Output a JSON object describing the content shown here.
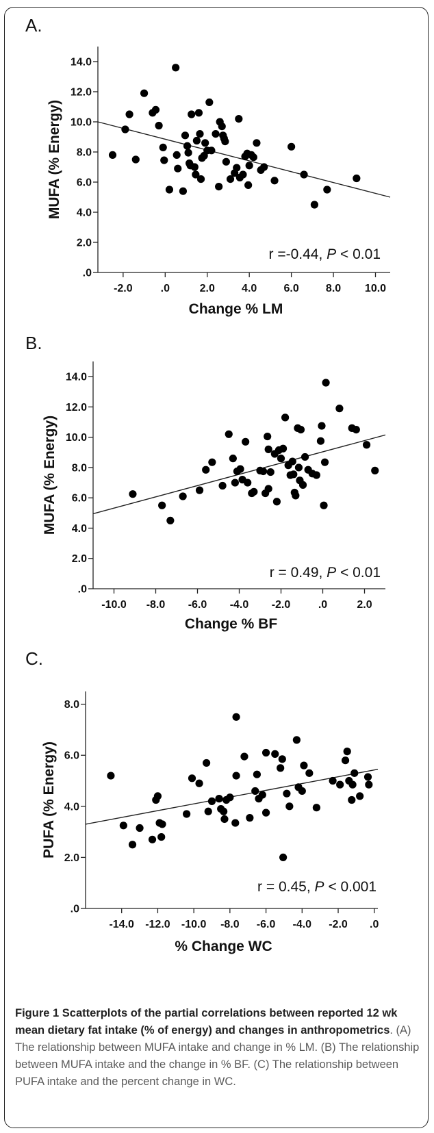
{
  "panels": [
    {
      "letter": "A.",
      "stat_prefix": "r =-0.44, ",
      "stat_p": "P",
      "stat_suffix": " < 0.01"
    },
    {
      "letter": "B.",
      "stat_prefix": "r = 0.49, ",
      "stat_p": "P",
      "stat_suffix": " < 0.01"
    },
    {
      "letter": "C.",
      "stat_prefix": "r = 0.45, ",
      "stat_p": "P",
      "stat_suffix": " < 0.001"
    }
  ],
  "caption": {
    "bold": "Figure 1 Scatterplots of the partial correlations between reported 12 wk mean dietary fat intake (% of energy) and changes in anthropometrics",
    "rest": ". (A) The relationship between MUFA intake and change in % LM. (B) The relationship between MUFA intake and the change in % BF. (C) The relationship between PUFA intake and the percent change in WC."
  },
  "colors": {
    "points": "#000000",
    "line": "#222222",
    "caption": "#5a5a5a"
  },
  "chart_data": [
    {
      "type": "scatter",
      "xlabel": "Change % LM",
      "ylabel": "MUFA (% Energy)",
      "xlim": [
        -3.2,
        10.7
      ],
      "ylim": [
        0,
        15
      ],
      "xticks": [
        -2,
        0,
        2,
        4,
        6,
        8,
        10
      ],
      "xtick_labels": [
        "-2.0",
        ".0",
        "2.0",
        "4.0",
        "6.0",
        "8.0",
        "10.0"
      ],
      "yticks": [
        0,
        2,
        4,
        6,
        8,
        10,
        12,
        14
      ],
      "ytick_labels": [
        ".0",
        "2.0",
        "4.0",
        "6.0",
        "8.0",
        "10.0",
        "12.0",
        "14.0"
      ],
      "fit_line": {
        "x": [
          -3.2,
          10.7
        ],
        "y": [
          10.0,
          5.0
        ]
      },
      "points": [
        [
          -2.5,
          7.8
        ],
        [
          -1.9,
          9.5
        ],
        [
          -1.7,
          10.5
        ],
        [
          -1.4,
          7.5
        ],
        [
          -1.0,
          11.9
        ],
        [
          -0.6,
          10.6
        ],
        [
          -0.45,
          10.8
        ],
        [
          -0.3,
          9.75
        ],
        [
          -0.1,
          8.3
        ],
        [
          -0.05,
          7.45
        ],
        [
          0.2,
          5.5
        ],
        [
          0.5,
          13.6
        ],
        [
          0.55,
          7.8
        ],
        [
          0.6,
          6.9
        ],
        [
          0.85,
          5.4
        ],
        [
          0.95,
          9.1
        ],
        [
          1.05,
          8.4
        ],
        [
          1.1,
          7.95
        ],
        [
          1.15,
          7.25
        ],
        [
          1.2,
          7.1
        ],
        [
          1.25,
          10.5
        ],
        [
          1.4,
          7.0
        ],
        [
          1.45,
          6.5
        ],
        [
          1.5,
          8.75
        ],
        [
          1.6,
          10.6
        ],
        [
          1.65,
          9.2
        ],
        [
          1.7,
          6.2
        ],
        [
          1.75,
          7.6
        ],
        [
          1.85,
          7.75
        ],
        [
          1.9,
          8.6
        ],
        [
          2.0,
          8.1
        ],
        [
          2.1,
          11.3
        ],
        [
          2.2,
          8.1
        ],
        [
          2.4,
          9.2
        ],
        [
          2.55,
          5.7
        ],
        [
          2.6,
          10.0
        ],
        [
          2.7,
          9.7
        ],
        [
          2.75,
          9.1
        ],
        [
          2.8,
          8.9
        ],
        [
          2.85,
          8.7
        ],
        [
          2.9,
          7.35
        ],
        [
          3.1,
          6.2
        ],
        [
          3.3,
          6.6
        ],
        [
          3.4,
          6.95
        ],
        [
          3.5,
          10.2
        ],
        [
          3.55,
          6.3
        ],
        [
          3.7,
          6.5
        ],
        [
          3.8,
          7.7
        ],
        [
          3.9,
          7.9
        ],
        [
          3.95,
          5.8
        ],
        [
          4.0,
          7.1
        ],
        [
          4.1,
          7.8
        ],
        [
          4.2,
          7.65
        ],
        [
          4.35,
          8.6
        ],
        [
          4.55,
          6.8
        ],
        [
          4.7,
          7.0
        ],
        [
          5.2,
          6.1
        ],
        [
          6.0,
          8.35
        ],
        [
          6.6,
          6.5
        ],
        [
          7.1,
          4.5
        ],
        [
          7.7,
          5.5
        ],
        [
          9.1,
          6.25
        ]
      ]
    },
    {
      "type": "scatter",
      "xlabel": "Change % BF",
      "ylabel": "MUFA (% Energy)",
      "xlim": [
        -11,
        3.0
      ],
      "ylim": [
        0,
        15
      ],
      "xticks": [
        -10,
        -8,
        -6,
        -4,
        -2,
        0,
        2
      ],
      "xtick_labels": [
        "-10.0",
        "-8.0",
        "-6.0",
        "-4.0",
        "-2.0",
        ".0",
        "2.0"
      ],
      "yticks": [
        0,
        2,
        4,
        6,
        8,
        10,
        12,
        14
      ],
      "ytick_labels": [
        ".0",
        "2.0",
        "4.0",
        "6.0",
        "8.0",
        "10.0",
        "12.0",
        "14.0"
      ],
      "fit_line": {
        "x": [
          -11,
          3.0
        ],
        "y": [
          4.95,
          10.15
        ]
      },
      "points": [
        [
          -9.1,
          6.25
        ],
        [
          -7.7,
          5.5
        ],
        [
          -7.3,
          4.5
        ],
        [
          -6.7,
          6.1
        ],
        [
          -5.9,
          6.5
        ],
        [
          -5.6,
          7.85
        ],
        [
          -5.3,
          8.35
        ],
        [
          -4.8,
          6.8
        ],
        [
          -4.5,
          10.2
        ],
        [
          -4.3,
          8.6
        ],
        [
          -4.2,
          7.0
        ],
        [
          -4.1,
          7.75
        ],
        [
          -3.95,
          7.9
        ],
        [
          -3.85,
          7.2
        ],
        [
          -3.7,
          9.7
        ],
        [
          -3.6,
          7.0
        ],
        [
          -3.4,
          6.3
        ],
        [
          -3.3,
          6.4
        ],
        [
          -3.0,
          7.8
        ],
        [
          -2.85,
          7.75
        ],
        [
          -2.75,
          6.3
        ],
        [
          -2.6,
          6.6
        ],
        [
          -2.65,
          10.05
        ],
        [
          -2.5,
          7.7
        ],
        [
          -2.6,
          9.2
        ],
        [
          -2.3,
          8.9
        ],
        [
          -2.2,
          5.75
        ],
        [
          -2.1,
          9.15
        ],
        [
          -2.0,
          8.6
        ],
        [
          -1.9,
          9.25
        ],
        [
          -1.8,
          11.3
        ],
        [
          -1.65,
          8.15
        ],
        [
          -1.55,
          7.5
        ],
        [
          -1.45,
          8.4
        ],
        [
          -1.4,
          7.55
        ],
        [
          -1.35,
          6.35
        ],
        [
          -1.3,
          6.15
        ],
        [
          -1.2,
          10.6
        ],
        [
          -1.15,
          8.0
        ],
        [
          -1.1,
          7.15
        ],
        [
          -1.05,
          10.5
        ],
        [
          -0.95,
          6.85
        ],
        [
          -0.85,
          8.7
        ],
        [
          -0.7,
          7.85
        ],
        [
          -0.5,
          7.6
        ],
        [
          -0.3,
          7.5
        ],
        [
          -0.1,
          9.75
        ],
        [
          -0.05,
          10.75
        ],
        [
          0.05,
          5.5
        ],
        [
          0.1,
          8.35
        ],
        [
          0.15,
          13.6
        ],
        [
          0.8,
          11.9
        ],
        [
          1.4,
          10.6
        ],
        [
          1.6,
          10.5
        ],
        [
          2.1,
          9.5
        ],
        [
          2.5,
          7.8
        ]
      ]
    },
    {
      "type": "scatter",
      "xlabel": "% Change WC",
      "ylabel": "PUFA (% Energy)",
      "xlim": [
        -16,
        0.2
      ],
      "ylim": [
        0,
        8.5
      ],
      "xticks": [
        -14,
        -12,
        -10,
        -8,
        -6,
        -4,
        -2,
        0
      ],
      "xtick_labels": [
        "-14.0",
        "-12.0",
        "-10.0",
        "-8.0",
        "-6.0",
        "-4.0",
        "-2.0",
        ".0"
      ],
      "yticks": [
        0,
        2,
        4,
        6,
        8
      ],
      "ytick_labels": [
        ".0",
        "2.0",
        "4.0",
        "6.0",
        "8.0"
      ],
      "fit_line": {
        "x": [
          -16,
          0.2
        ],
        "y": [
          3.3,
          5.45
        ]
      },
      "points": [
        [
          -14.6,
          5.2
        ],
        [
          -13.9,
          3.25
        ],
        [
          -13.4,
          2.5
        ],
        [
          -13.0,
          3.15
        ],
        [
          -12.3,
          2.7
        ],
        [
          -12.1,
          4.25
        ],
        [
          -12.0,
          4.4
        ],
        [
          -11.9,
          3.35
        ],
        [
          -11.8,
          2.8
        ],
        [
          -11.75,
          3.3
        ],
        [
          -10.4,
          3.7
        ],
        [
          -10.1,
          5.1
        ],
        [
          -9.7,
          4.9
        ],
        [
          -9.3,
          5.7
        ],
        [
          -9.2,
          3.8
        ],
        [
          -9.0,
          4.2
        ],
        [
          -8.6,
          4.3
        ],
        [
          -8.5,
          3.9
        ],
        [
          -8.35,
          3.8
        ],
        [
          -8.3,
          3.5
        ],
        [
          -8.2,
          4.25
        ],
        [
          -8.0,
          4.35
        ],
        [
          -7.7,
          3.35
        ],
        [
          -7.65,
          7.5
        ],
        [
          -7.65,
          5.2
        ],
        [
          -7.2,
          5.95
        ],
        [
          -6.9,
          3.55
        ],
        [
          -6.6,
          4.6
        ],
        [
          -6.5,
          5.25
        ],
        [
          -6.4,
          4.3
        ],
        [
          -6.2,
          4.45
        ],
        [
          -6.0,
          3.75
        ],
        [
          -6.0,
          6.1
        ],
        [
          -5.5,
          6.05
        ],
        [
          -5.2,
          5.5
        ],
        [
          -5.1,
          5.85
        ],
        [
          -5.05,
          2.0
        ],
        [
          -4.85,
          4.5
        ],
        [
          -4.7,
          4.0
        ],
        [
          -4.3,
          6.6
        ],
        [
          -4.2,
          4.75
        ],
        [
          -4.0,
          4.6
        ],
        [
          -3.9,
          5.6
        ],
        [
          -3.6,
          5.3
        ],
        [
          -3.2,
          3.95
        ],
        [
          -2.3,
          5.0
        ],
        [
          -1.9,
          4.85
        ],
        [
          -1.6,
          5.8
        ],
        [
          -1.5,
          6.15
        ],
        [
          -1.4,
          5.0
        ],
        [
          -1.25,
          4.25
        ],
        [
          -1.2,
          4.85
        ],
        [
          -1.1,
          5.3
        ],
        [
          -0.8,
          4.4
        ],
        [
          -0.35,
          5.15
        ],
        [
          -0.3,
          4.85
        ]
      ]
    }
  ]
}
